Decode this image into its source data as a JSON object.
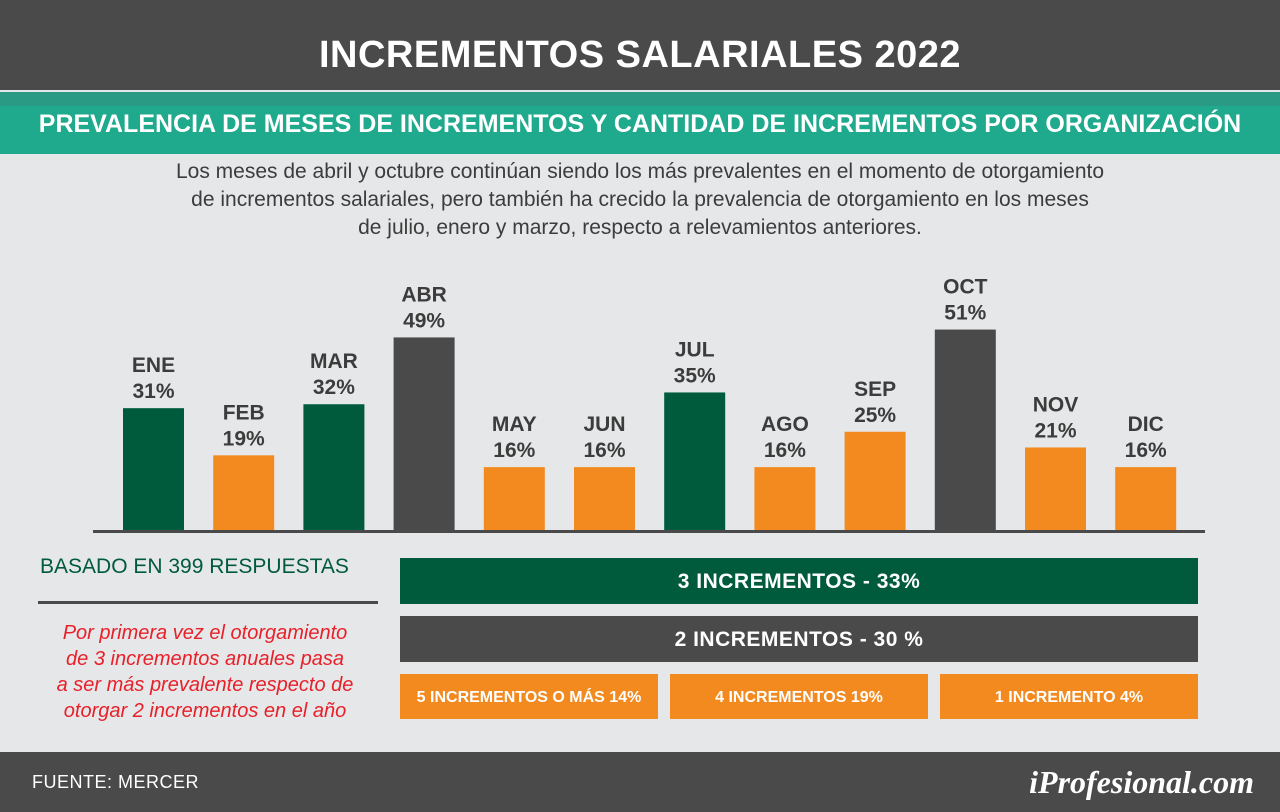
{
  "header": {
    "title": "INCREMENTOS SALARIALES 2022"
  },
  "subtitle": "PREVALENCIA DE MESES DE INCREMENTOS Y CANTIDAD DE INCREMENTOS POR ORGANIZACIÓN",
  "description": [
    "Los meses de abril y octubre continúan siendo los más prevalentes en el momento de otorgamiento",
    "de incrementos salariales, pero también ha crecido la prevalencia de otorgamiento en los meses",
    "de julio, enero y marzo, respecto a relevamientos anteriores."
  ],
  "colors": {
    "green": "#005a3c",
    "orange": "#f28a1f",
    "gray": "#4a4a4a",
    "teal": "#1fa98d",
    "red": "#e8202a"
  },
  "chart_data": [
    {
      "type": "bar",
      "categories": [
        "ENE",
        "FEB",
        "MAR",
        "ABR",
        "MAY",
        "JUN",
        "JUL",
        "AGO",
        "SEP",
        "OCT",
        "NOV",
        "DIC"
      ],
      "values": [
        31,
        19,
        32,
        49,
        16,
        16,
        35,
        16,
        25,
        51,
        21,
        16
      ],
      "value_labels": [
        "31%",
        "19%",
        "32%",
        "49%",
        "16%",
        "16%",
        "35%",
        "16%",
        "25%",
        "51%",
        "21%",
        "16%"
      ],
      "bar_colors": [
        "#005a3c",
        "#f28a1f",
        "#005a3c",
        "#4a4a4a",
        "#f28a1f",
        "#f28a1f",
        "#005a3c",
        "#f28a1f",
        "#f28a1f",
        "#4a4a4a",
        "#f28a1f",
        "#f28a1f"
      ],
      "ylim": [
        0,
        55
      ],
      "grid": false
    },
    {
      "type": "bar",
      "orientation": "horizontal",
      "categories": [
        "3 INCREMENTOS",
        "2 INCREMENTOS",
        "5 INCREMENTOS O MÁS",
        "4 INCREMENTOS",
        "1 INCREMENTO"
      ],
      "values": [
        33,
        30,
        14,
        19,
        4
      ]
    }
  ],
  "increments": {
    "three": "3 INCREMENTOS - 33%",
    "two": "2 INCREMENTOS - 30 %",
    "five_plus": "5 INCREMENTOS O MÁS 14%",
    "four": "4 INCREMENTOS 19%",
    "one": "1 INCREMENTO 4%"
  },
  "basis": "BASADO EN 399 RESPUESTAS",
  "note": [
    "Por primera vez el otorgamiento",
    "de 3 incrementos anuales pasa",
    "a ser más prevalente respecto de",
    "otorgar 2 incrementos en el año"
  ],
  "footer": {
    "source": "FUENTE: MERCER",
    "brand": "iProfesional.com"
  }
}
